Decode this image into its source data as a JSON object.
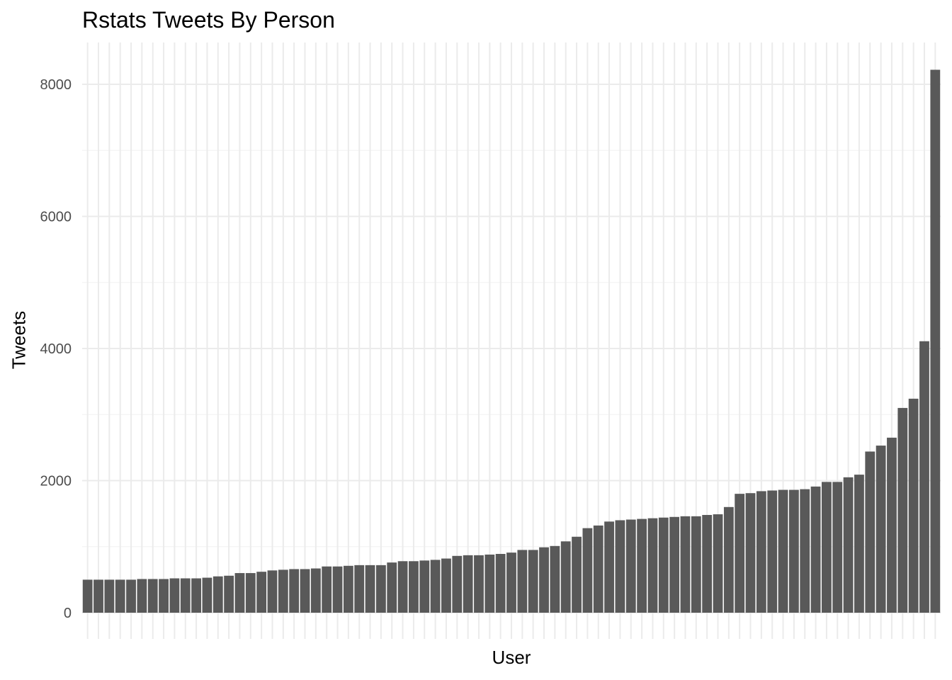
{
  "chart_data": {
    "type": "bar",
    "title": "Rstats Tweets By Person",
    "xlabel": "User",
    "ylabel": "Tweets",
    "ylim": [
      0,
      8600
    ],
    "yticks": [
      0,
      2000,
      4000,
      6000,
      8000
    ],
    "grid": true,
    "bar_color": "#595959",
    "values": [
      500,
      500,
      500,
      500,
      500,
      510,
      510,
      510,
      520,
      520,
      520,
      530,
      550,
      560,
      600,
      600,
      620,
      640,
      650,
      660,
      660,
      670,
      700,
      700,
      710,
      720,
      720,
      720,
      760,
      780,
      780,
      790,
      800,
      820,
      860,
      870,
      870,
      880,
      890,
      910,
      950,
      950,
      990,
      1010,
      1080,
      1150,
      1280,
      1320,
      1380,
      1400,
      1410,
      1420,
      1430,
      1440,
      1450,
      1460,
      1460,
      1480,
      1490,
      1600,
      1800,
      1810,
      1840,
      1850,
      1860,
      1860,
      1870,
      1910,
      1980,
      1980,
      2050,
      2090,
      2440,
      2530,
      2650,
      3100,
      3240,
      4110,
      8220
    ]
  }
}
